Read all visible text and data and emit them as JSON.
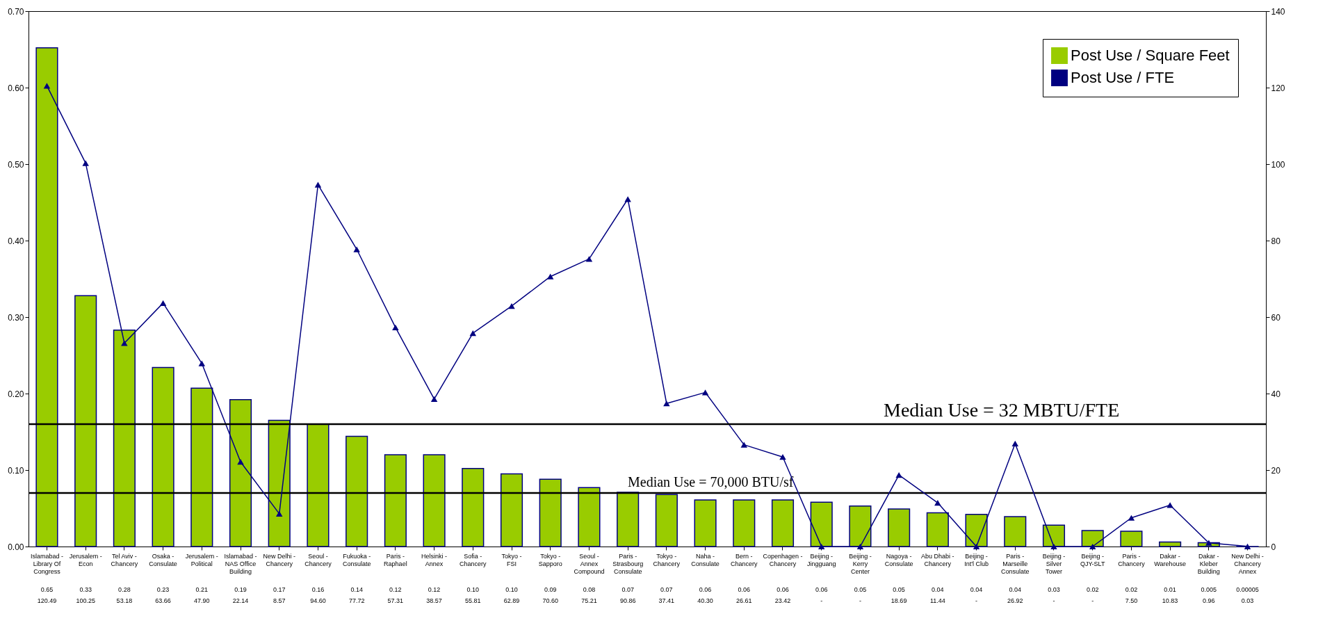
{
  "chart_data": {
    "type": "bar",
    "categories": [
      "Islamabad - Library Of Congress",
      "Jerusalem - Econ",
      "Tel Aviv - Chancery",
      "Osaka - Consulate",
      "Jerusalem - Political",
      "Islamabad - NAS Office Building",
      "New Delhi - Chancery",
      "Seoul - Chancery",
      "Fukuoka - Consulate",
      "Paris - Raphael",
      "Helsinki - Annex",
      "Sofia - Chancery",
      "Tokyo - FSI",
      "Tokyo - Sapporo",
      "Seoul - Annex Compound",
      "Paris - Strasbourg Consulate",
      "Tokyo - Chancery",
      "Naha - Consulate",
      "Bern - Chancery",
      "Copenhagen - Chancery",
      "Beijing - Jingguang",
      "Beijing - Kerry Center",
      "Nagoya - Consulate",
      "Abu Dhabi - Chancery",
      "Beijing - Int'l Club",
      "Paris - Marseille Consulate",
      "Beijing - Silver Tower",
      "Beijing - QJY-SLT",
      "Paris - Chancery",
      "Dakar - Warehouse",
      "Dakar - Kleber Building",
      "New Delhi - Chancery Annex"
    ],
    "series": [
      {
        "name": "Post Use / Square Feet",
        "color": "#99cc00",
        "values": [
          0.652,
          0.328,
          0.283,
          0.234,
          0.207,
          0.192,
          0.165,
          0.16,
          0.144,
          0.12,
          0.12,
          0.102,
          0.095,
          0.088,
          0.077,
          0.071,
          0.068,
          0.061,
          0.061,
          0.061,
          0.058,
          0.053,
          0.049,
          0.044,
          0.042,
          0.039,
          0.028,
          0.021,
          0.02,
          0.006,
          0.005,
          5e-05
        ],
        "value_labels": [
          "0.65",
          "0.33",
          "0.28",
          "0.23",
          "0.21",
          "0.19",
          "0.17",
          "0.16",
          "0.14",
          "0.12",
          "0.12",
          "0.10",
          "0.10",
          "0.09",
          "0.08",
          "0.07",
          "0.07",
          "0.06",
          "0.06",
          "0.06",
          "0.06",
          "0.05",
          "0.05",
          "0.04",
          "0.04",
          "0.04",
          "0.03",
          "0.02",
          "0.02",
          "0.01",
          "0.005",
          "0.00005"
        ]
      },
      {
        "name": "Post Use / FTE",
        "type": "line",
        "axis": "y2",
        "color": "#000080",
        "marker": "triangle",
        "values": [
          120.49,
          100.25,
          53.18,
          63.66,
          47.9,
          22.14,
          8.57,
          94.6,
          77.72,
          57.31,
          38.57,
          55.81,
          62.89,
          70.6,
          75.21,
          90.86,
          37.41,
          40.3,
          26.61,
          23.42,
          0,
          0,
          18.69,
          11.44,
          0,
          26.92,
          0,
          0,
          7.5,
          10.83,
          0.96,
          0.03
        ],
        "value_labels": [
          "120.49",
          "100.25",
          "53.18",
          "63.66",
          "47.90",
          "22.14",
          "8.57",
          "94.60",
          "77.72",
          "57.31",
          "38.57",
          "55.81",
          "62.89",
          "70.60",
          "75.21",
          "90.86",
          "37.41",
          "40.30",
          "26.61",
          "23.42",
          "-",
          "-",
          "18.69",
          "11.44",
          "-",
          "26.92",
          "-",
          "-",
          "7.50",
          "10.83",
          "0.96",
          "0.03"
        ]
      }
    ],
    "ylim": [
      0,
      0.7
    ],
    "yticks": [
      {
        "value": 0,
        "label": "0.00"
      },
      {
        "value": 0.1,
        "label": "0.10"
      },
      {
        "value": 0.2,
        "label": "0.20"
      },
      {
        "value": 0.3,
        "label": "0.30"
      },
      {
        "value": 0.4,
        "label": "0.40"
      },
      {
        "value": 0.5,
        "label": "0.50"
      },
      {
        "value": 0.6,
        "label": "0.60"
      },
      {
        "value": 0.7,
        "label": "0.70"
      }
    ],
    "y2lim": [
      0,
      140
    ],
    "y2ticks": [
      0,
      20,
      40,
      60,
      80,
      100,
      120,
      140
    ],
    "ref_lines": [
      {
        "axis": "y",
        "value": 0.07,
        "label": "Median Use = 70,000 BTU/sf",
        "color": "#000000"
      },
      {
        "axis": "y2",
        "value": 32,
        "label": "Median Use = 32 MBTU/FTE",
        "color": "#000000"
      }
    ],
    "legend": "top right",
    "grid": false
  }
}
